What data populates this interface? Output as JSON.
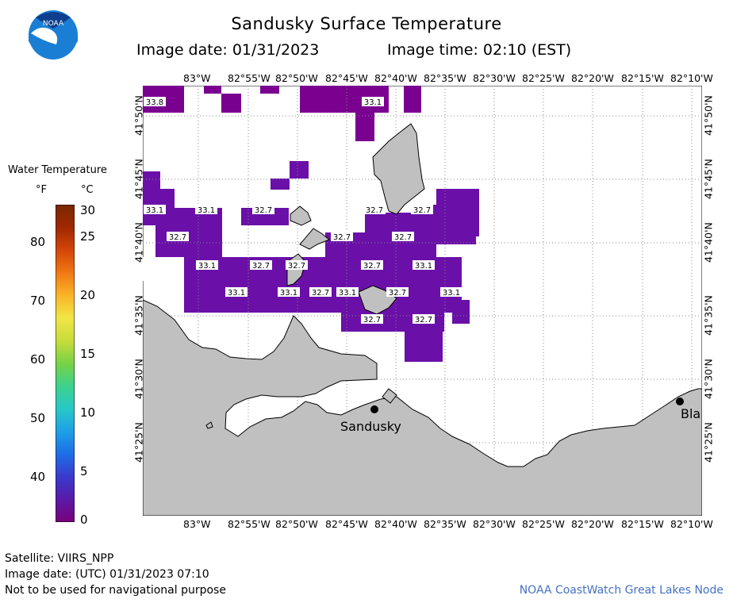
{
  "title": "Sandusky Surface Temperature",
  "image_date_label": "Image date: 01/31/2023",
  "image_time_label": "Image time: 02:10 (EST)",
  "legend": {
    "heading": "Water Temperature",
    "unit_f": "°F",
    "unit_c": "°C",
    "fahrenheit_ticks": [
      "40",
      "50",
      "60",
      "70",
      "80"
    ],
    "celsius_ticks": [
      "0",
      "5",
      "10",
      "15",
      "20",
      "25",
      "30"
    ],
    "colorscale": [
      "#7a007a",
      "#5a1aa8",
      "#3a3acc",
      "#1e6ee6",
      "#1ea0e6",
      "#28c8c8",
      "#3cd28c",
      "#78d246",
      "#c8dc3c",
      "#f0e646",
      "#fab428",
      "#f07814",
      "#d2460a",
      "#a02800",
      "#782800"
    ]
  },
  "lon_labels": [
    "83°W",
    "82°55'W",
    "82°50'W",
    "82°45'W",
    "82°40'W",
    "82°35'W",
    "82°30'W",
    "82°25'W",
    "82°20'W",
    "82°15'W",
    "82°10'W"
  ],
  "lat_labels": [
    "41°50'N",
    "41°45'N",
    "41°40'N",
    "41°35'N",
    "41°30'N",
    "41°25'N"
  ],
  "temperature_labels": [
    "33.8",
    "33.1",
    "33.1",
    "33.1",
    "32.7",
    "32.7",
    "32.7",
    "32.7",
    "32.7",
    "33.1",
    "32.7",
    "32.7",
    "32.7",
    "32.7",
    "33.1",
    "33.1",
    "32.7",
    "33.1",
    "33.1",
    "32.7",
    "33.1",
    "32.7",
    "32.7"
  ],
  "cities": {
    "sandusky": "Sandusky",
    "bla": "Bla"
  },
  "footer": {
    "satellite": "Satellite: VIIRS_NPP",
    "utc_date": "Image date: (UTC) 01/31/2023  07:10",
    "warning": "Not to be used for navigational purpose",
    "credit": "NOAA CoastWatch Great Lakes Node"
  },
  "colors": {
    "land": "#c0c0c0",
    "water_temp_main": "#6a10a8",
    "water_temp_dark": "#7a0090",
    "grid": "#888888"
  }
}
